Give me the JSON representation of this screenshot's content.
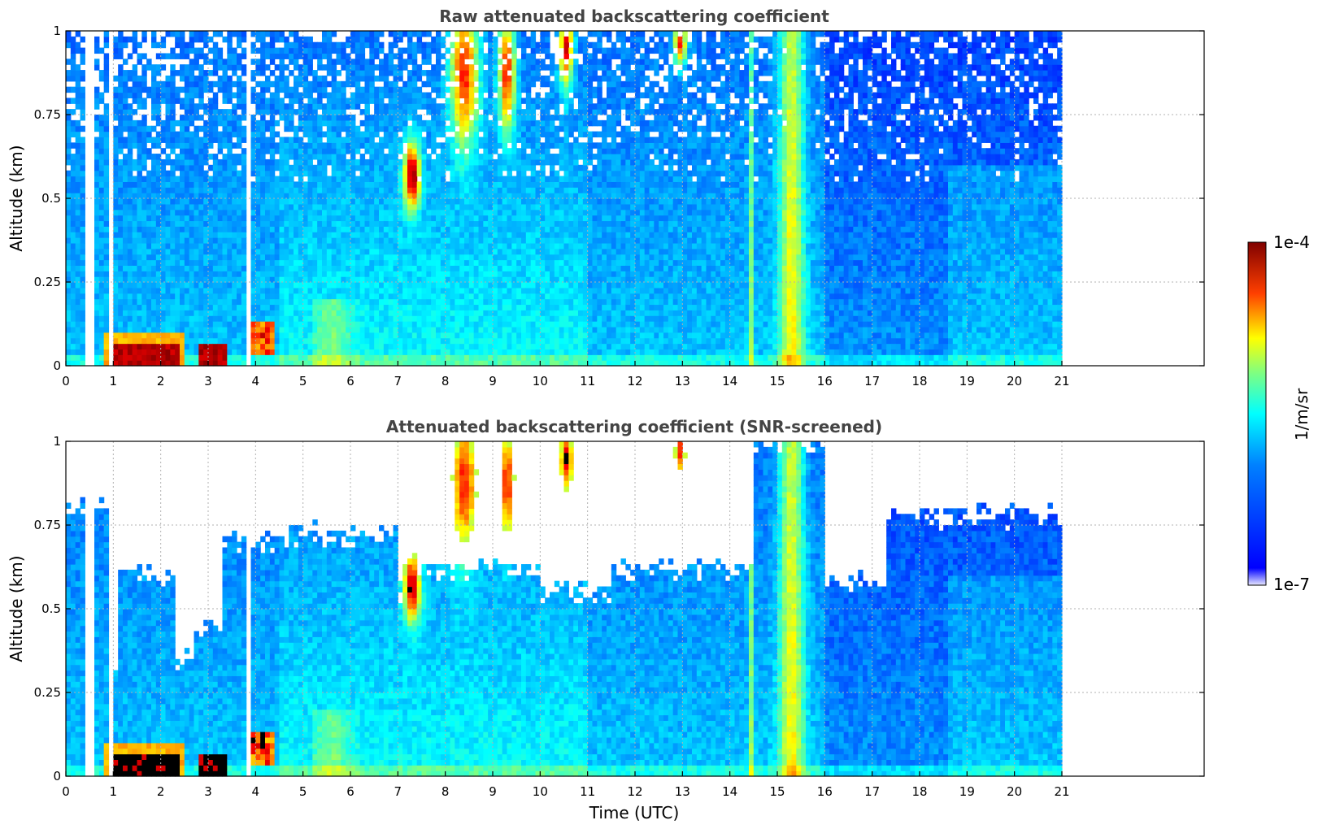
{
  "chart_data": [
    {
      "type": "heatmap",
      "title": "Raw attenuated backscattering coefficient",
      "xlabel": "",
      "ylabel": "Altitude (km)",
      "xlim": [
        0,
        24
      ],
      "ylim": [
        0,
        1
      ],
      "xticks": [
        "0",
        "1",
        "2",
        "3",
        "4",
        "5",
        "6",
        "7",
        "8",
        "9",
        "10",
        "11",
        "12",
        "13",
        "14",
        "15",
        "16",
        "17",
        "18",
        "19",
        "20",
        "21"
      ],
      "yticks": [
        "0",
        "0.25",
        "0.5",
        "0.75",
        "1"
      ],
      "grid": true,
      "data_end_time": 21,
      "screened": false
    },
    {
      "type": "heatmap",
      "title": "Attenuated backscattering coefficient (SNR-screened)",
      "xlabel": "Time (UTC)",
      "ylabel": "Altitude (km)",
      "xlim": [
        0,
        24
      ],
      "ylim": [
        0,
        1
      ],
      "xticks": [
        "0",
        "1",
        "2",
        "3",
        "4",
        "5",
        "6",
        "7",
        "8",
        "9",
        "10",
        "11",
        "12",
        "13",
        "14",
        "15",
        "16",
        "17",
        "18",
        "19",
        "20",
        "21"
      ],
      "yticks": [
        "0",
        "0.25",
        "0.5",
        "0.75",
        "1"
      ],
      "grid": true,
      "data_end_time": 21,
      "screened": true
    }
  ],
  "colorbar": {
    "label": "1/m/sr",
    "max_label": "1e-4",
    "min_label": "1e-7",
    "colormap": "jet",
    "scale": "log"
  }
}
